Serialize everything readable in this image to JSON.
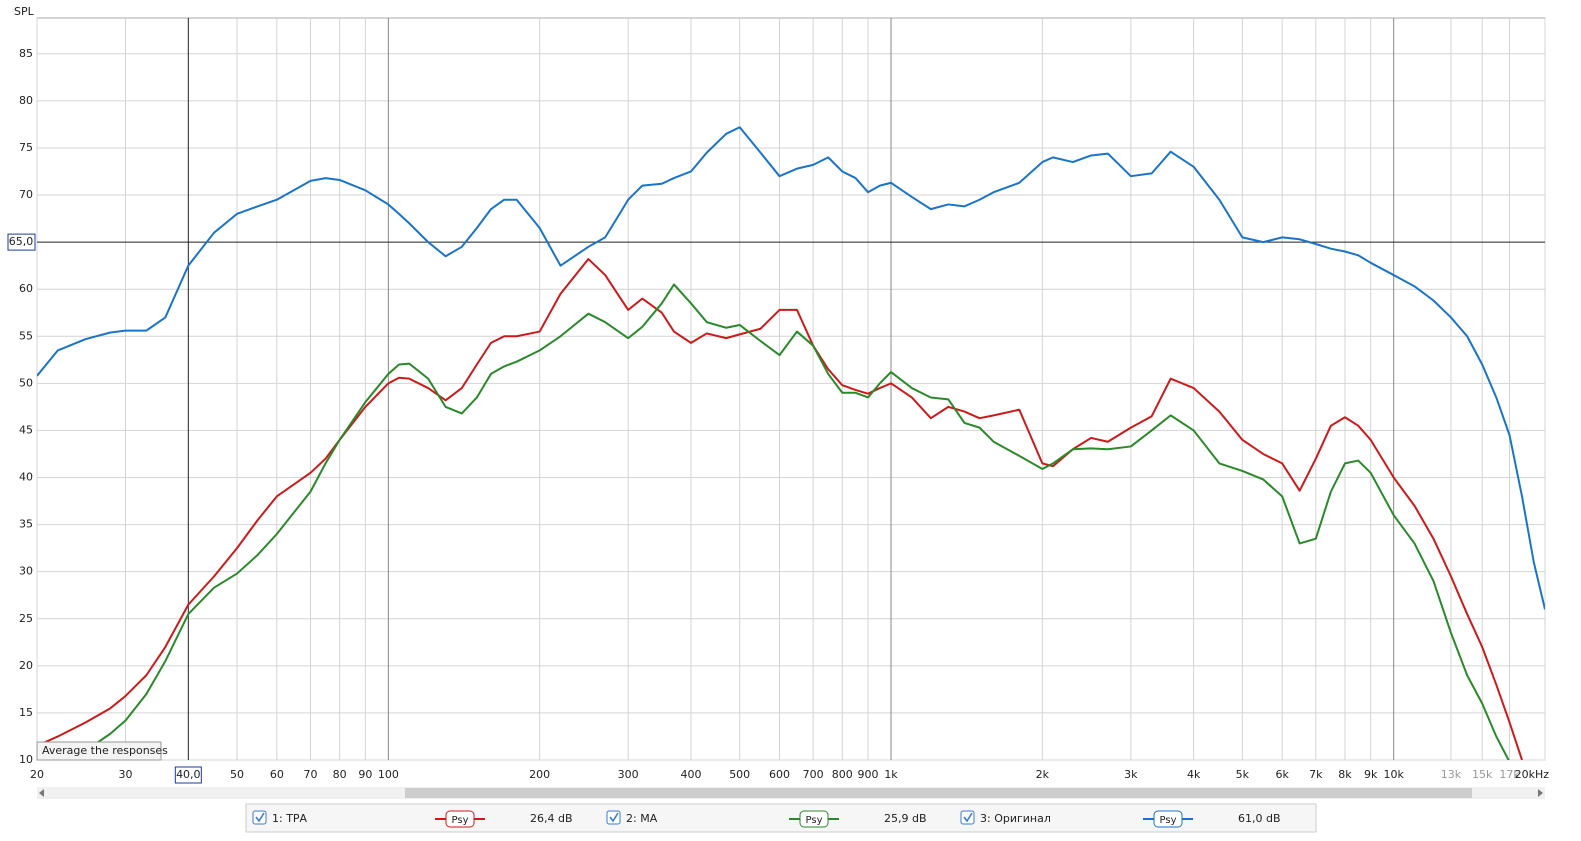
{
  "chart_data": {
    "type": "line",
    "y_label": "SPL",
    "x_scale": "log",
    "xlim": [
      20,
      20000
    ],
    "ylim": [
      10,
      88.8
    ],
    "grid": true,
    "xticks": [
      20,
      30,
      50,
      60,
      70,
      80,
      90,
      100,
      200,
      300,
      400,
      500,
      600,
      700,
      800,
      900,
      {
        "value": 1000,
        "label": "1k"
      },
      {
        "value": 2000,
        "label": "2k"
      },
      {
        "value": 3000,
        "label": "3k"
      },
      {
        "value": 4000,
        "label": "4k"
      },
      {
        "value": 5000,
        "label": "5k"
      },
      {
        "value": 6000,
        "label": "6k"
      },
      {
        "value": 7000,
        "label": "7k"
      },
      {
        "value": 8000,
        "label": "8k"
      },
      {
        "value": 9000,
        "label": "9k"
      },
      {
        "value": 10000,
        "label": "10k"
      },
      {
        "value": 13000,
        "label": "13k",
        "muted": true
      },
      {
        "value": 15000,
        "label": "15k",
        "muted": true
      },
      {
        "value": 17000,
        "label": "17k",
        "muted": true
      },
      {
        "value": 20000,
        "label": "20kHz"
      }
    ],
    "yticks": [
      10,
      15,
      20,
      25,
      30,
      35,
      40,
      45,
      50,
      55,
      60,
      70,
      75,
      80,
      85
    ],
    "cursor": {
      "x": 40,
      "x_label": "40,0",
      "y": 65,
      "y_label": "65,0"
    },
    "tooltip": "Average the responses",
    "x": [
      20,
      22,
      25,
      28,
      30,
      33,
      36,
      40,
      45,
      50,
      55,
      60,
      70,
      75,
      80,
      90,
      100,
      105,
      110,
      120,
      130,
      140,
      150,
      160,
      170,
      180,
      200,
      220,
      250,
      270,
      300,
      320,
      350,
      370,
      400,
      430,
      470,
      500,
      550,
      600,
      650,
      700,
      750,
      800,
      850,
      900,
      950,
      1000,
      1100,
      1200,
      1300,
      1400,
      1500,
      1600,
      1800,
      2000,
      2100,
      2300,
      2500,
      2700,
      3000,
      3300,
      3600,
      4000,
      4500,
      5000,
      5500,
      6000,
      6500,
      7000,
      7500,
      8000,
      8500,
      9000,
      10000,
      11000,
      12000,
      13000,
      14000,
      15000,
      16000,
      17000,
      18000,
      19000,
      20000
    ],
    "series": [
      {
        "name": "1: ТРА",
        "smoothing": "Psy",
        "offset": "26,4 dB",
        "color": "#cc1a1a",
        "values": [
          11.5,
          12.5,
          14,
          15.5,
          16.8,
          19,
          22,
          26.5,
          29.5,
          32.5,
          35.5,
          38,
          40.5,
          42,
          44,
          47.5,
          50,
          50.6,
          50.5,
          49.5,
          48.2,
          49.5,
          52,
          54.3,
          55,
          55,
          55.5,
          59.5,
          63.2,
          61.5,
          57.8,
          59,
          57.5,
          55.5,
          54.3,
          55.3,
          54.8,
          55.2,
          55.8,
          57.8,
          57.8,
          54,
          51.5,
          49.8,
          49.3,
          48.9,
          49.5,
          50,
          48.5,
          46.3,
          47.5,
          47,
          46.3,
          46.6,
          47.2,
          41.5,
          41.2,
          43,
          44.2,
          43.8,
          45.3,
          46.5,
          50.5,
          49.5,
          47,
          44,
          42.5,
          41.5,
          38.6,
          42,
          45.5,
          46.4,
          45.5,
          44,
          40,
          37,
          33.5,
          29.5,
          25.5,
          22,
          18,
          14,
          10,
          null,
          null
        ]
      },
      {
        "name": "2: МА",
        "smoothing": "Psy",
        "offset": "25,9 dB",
        "color": "#2a8a2a",
        "values": [
          null,
          null,
          11,
          12.8,
          14.2,
          17,
          20.5,
          25.5,
          28.3,
          29.8,
          31.8,
          34,
          38.5,
          41.5,
          44,
          48,
          51,
          52,
          52.1,
          50.5,
          47.5,
          46.8,
          48.5,
          51,
          51.8,
          52.3,
          53.5,
          55,
          57.4,
          56.5,
          54.8,
          56,
          58.5,
          60.5,
          58.5,
          56.5,
          55.9,
          56.2,
          54.5,
          53,
          55.5,
          54,
          51,
          49,
          49,
          48.5,
          50,
          51.2,
          49.5,
          48.5,
          48.3,
          45.8,
          45.3,
          43.8,
          42.3,
          40.9,
          41.5,
          43,
          43.1,
          43,
          43.3,
          45,
          46.6,
          45,
          41.5,
          40.7,
          39.8,
          38,
          33,
          33.5,
          38.5,
          41.5,
          41.8,
          40.5,
          36,
          33,
          29,
          23.5,
          19,
          16,
          12.5,
          9.8,
          null,
          null,
          null
        ]
      },
      {
        "name": "3: Оригинал",
        "smoothing": "Psy",
        "offset": "61,0 dB",
        "color": "#1a74c8",
        "values": [
          50.8,
          53.5,
          54.7,
          55.4,
          55.6,
          55.6,
          57,
          62.5,
          66,
          68,
          68.8,
          69.5,
          71.5,
          71.8,
          71.6,
          70.5,
          69,
          68,
          67,
          65,
          63.5,
          64.5,
          66.5,
          68.5,
          69.5,
          69.5,
          66.5,
          62.5,
          64.5,
          65.5,
          69.5,
          71,
          71.2,
          71.8,
          72.5,
          74.5,
          76.5,
          77.2,
          74.5,
          72,
          72.8,
          73.2,
          74,
          72.5,
          71.8,
          70.3,
          71,
          71.3,
          69.8,
          68.5,
          69,
          68.8,
          69.5,
          70.3,
          71.3,
          73.5,
          74,
          73.5,
          74.2,
          74.4,
          72,
          72.3,
          74.6,
          73,
          69.5,
          65.5,
          65,
          65.5,
          65.3,
          64.8,
          64.3,
          64,
          63.6,
          62.8,
          61.5,
          60.3,
          58.8,
          57,
          55,
          52,
          48.5,
          44.5,
          38,
          31,
          26
        ]
      }
    ]
  }
}
